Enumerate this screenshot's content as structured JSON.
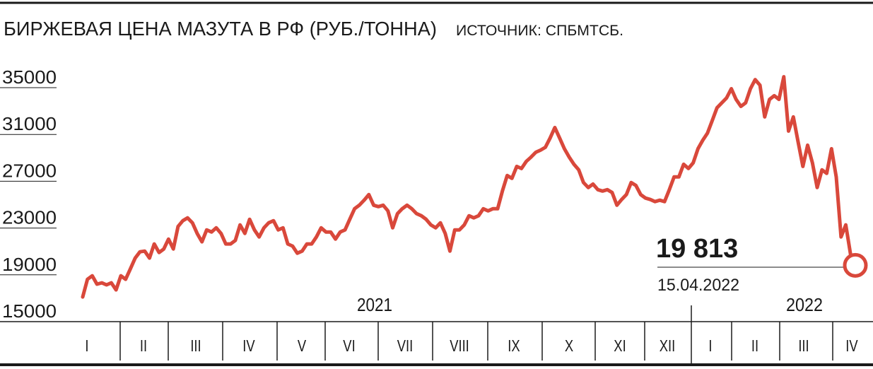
{
  "chart_data": {
    "type": "line",
    "title": "БИРЖЕВАЯ ЦЕНА МАЗУТА В РФ (РУБ./ТОННА)",
    "source": "ИСТОЧНИК: СПБМТСБ.",
    "color": "#d9483b",
    "ylim": [
      15000,
      35000
    ],
    "yticks": [
      15000,
      19000,
      23000,
      27000,
      31000,
      35000
    ],
    "months": [
      "I",
      "II",
      "III",
      "IV",
      "V",
      "VI",
      "VII",
      "VIII",
      "IX",
      "X",
      "XI",
      "XII",
      "I",
      "II",
      "III",
      "IV"
    ],
    "years": [
      "2021",
      "2022"
    ],
    "annotation": {
      "value": 19813,
      "label": "19 813",
      "date": "15.04.2022"
    },
    "values": [
      17110,
      18620,
      18920,
      18200,
      18320,
      18140,
      18320,
      17710,
      18920,
      18620,
      19520,
      20430,
      20970,
      21030,
      20430,
      21640,
      20910,
      21210,
      22060,
      21210,
      23140,
      23630,
      23870,
      23450,
      22540,
      21820,
      22840,
      22660,
      23020,
      22540,
      21640,
      21640,
      21940,
      23270,
      22540,
      23750,
      22840,
      22240,
      23020,
      23450,
      23630,
      22840,
      23020,
      21640,
      21460,
      20850,
      21030,
      21640,
      21640,
      22240,
      23020,
      22660,
      22660,
      22060,
      22660,
      22840,
      23750,
      24650,
      24950,
      25380,
      25860,
      24950,
      24830,
      24950,
      24470,
      23020,
      24230,
      24650,
      24950,
      24650,
      24230,
      24050,
      23750,
      23270,
      23020,
      23450,
      22540,
      21030,
      22840,
      22840,
      23270,
      24050,
      23870,
      24050,
      24650,
      24470,
      24650,
      24650,
      26160,
      27490,
      27250,
      28270,
      28090,
      28700,
      29060,
      29480,
      29660,
      29900,
      30690,
      31590,
      30690,
      29780,
      29060,
      28450,
      27970,
      26890,
      26460,
      26760,
      26280,
      26160,
      26280,
      26040,
      24950,
      25440,
      25860,
      26890,
      26640,
      25860,
      25560,
      25440,
      25260,
      25380,
      25260,
      26280,
      27370,
      27370,
      28450,
      28090,
      28570,
      29780,
      30500,
      31110,
      32190,
      33280,
      33700,
      34120,
      34910,
      34000,
      33400,
      33700,
      34910,
      35690,
      35210,
      32500,
      34000,
      34310,
      34000,
      35930,
      31290,
      32500,
      30380,
      28270,
      30080,
      28570,
      26460,
      27970,
      27670,
      29780,
      27370,
      22240,
      23270,
      20730,
      19813
    ]
  }
}
